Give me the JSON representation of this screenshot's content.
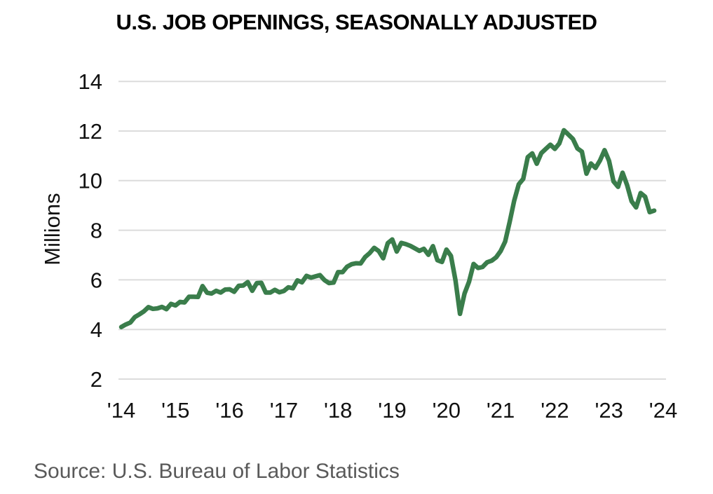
{
  "title": "U.S. JOB OPENINGS, SEASONALLY ADJUSTED",
  "source": "Source: U.S. Bureau of Labor Statistics",
  "colors": {
    "line": "#3a7d4b",
    "gridline": "#dcdcdc",
    "tick_text": "#111111",
    "title_text": "#000000",
    "source_text": "#595959",
    "background": "#ffffff"
  },
  "chart_data": {
    "type": "line",
    "title": "U.S. JOB OPENINGS, SEASONALLY ADJUSTED",
    "xlabel": "",
    "ylabel": "Millions",
    "x_unit": "month",
    "x_start": "2014-01",
    "x_end": "2023-11",
    "ylim": [
      2,
      14
    ],
    "grid": "horizontal",
    "legend_position": "none",
    "y_ticks": [
      14,
      12,
      10,
      8,
      6,
      4,
      2
    ],
    "x_tick_labels": [
      "'14",
      "'15",
      "'16",
      "'17",
      "'18",
      "'19",
      "'20",
      "'21",
      "'22",
      "'23",
      "'24"
    ],
    "series": [
      {
        "name": "Job openings, seasonally adjusted (millions)",
        "values": [
          4.1,
          4.2,
          4.28,
          4.5,
          4.61,
          4.73,
          4.9,
          4.83,
          4.85,
          4.91,
          4.82,
          5.03,
          4.97,
          5.11,
          5.09,
          5.32,
          5.32,
          5.31,
          5.75,
          5.48,
          5.45,
          5.56,
          5.49,
          5.61,
          5.62,
          5.52,
          5.76,
          5.77,
          5.91,
          5.56,
          5.87,
          5.88,
          5.49,
          5.49,
          5.6,
          5.5,
          5.55,
          5.7,
          5.66,
          5.98,
          5.9,
          6.16,
          6.09,
          6.14,
          6.19,
          5.99,
          5.87,
          5.89,
          6.31,
          6.31,
          6.53,
          6.63,
          6.67,
          6.66,
          6.92,
          7.08,
          7.29,
          7.16,
          6.87,
          7.48,
          7.63,
          7.14,
          7.49,
          7.44,
          7.37,
          7.27,
          7.17,
          7.25,
          7.01,
          7.36,
          6.79,
          6.72,
          7.22,
          6.97,
          5.98,
          4.63,
          5.45,
          5.92,
          6.64,
          6.48,
          6.52,
          6.71,
          6.77,
          6.91,
          7.16,
          7.54,
          8.34,
          9.19,
          9.85,
          10.07,
          10.95,
          11.1,
          10.68,
          11.11,
          11.28,
          11.45,
          11.28,
          11.5,
          12.03,
          11.86,
          11.68,
          11.3,
          11.17,
          10.28,
          10.69,
          10.51,
          10.81,
          11.23,
          10.8,
          9.97,
          9.75,
          10.32,
          9.82,
          9.17,
          8.92,
          9.5,
          9.35,
          8.73,
          8.79
        ]
      }
    ]
  }
}
